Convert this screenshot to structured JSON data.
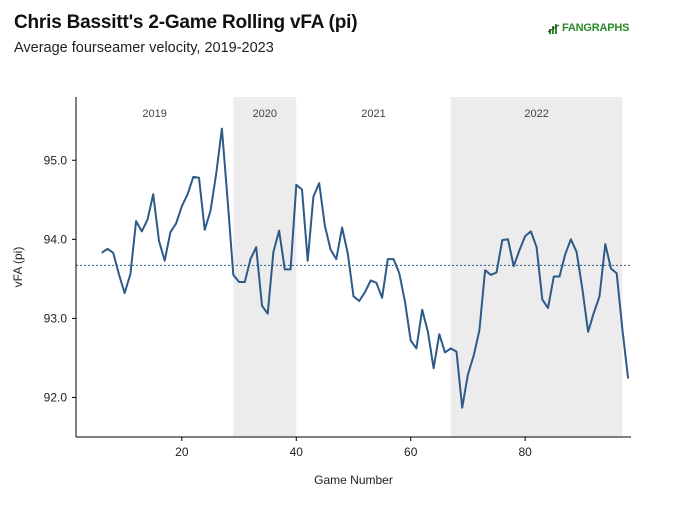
{
  "header": {
    "title": "Chris Bassitt's 2-Game Rolling vFA (pi)",
    "subtitle": "Average fourseamer velocity, 2019-2023",
    "logo_text": "FANGRAPHS"
  },
  "colors": {
    "line": "#2e5a88",
    "shade": "#ececec",
    "avg_line": "#2e5a88",
    "logo_green": "#2a8a2a"
  },
  "chart_data": {
    "type": "line",
    "title": "Chris Bassitt's 2-Game Rolling vFA (pi)",
    "subtitle": "Average fourseamer velocity, 2019-2023",
    "xlabel": "Game Number",
    "ylabel": "vFA (pi)",
    "xlim": [
      1.5,
      98.5
    ],
    "ylim": [
      91.5,
      95.8
    ],
    "x_ticks": [
      20,
      40,
      60,
      80
    ],
    "y_ticks": [
      92.0,
      93.0,
      94.0,
      95.0
    ],
    "y_tick_labels": [
      "92.0",
      "93.0",
      "94.0",
      "95.0"
    ],
    "average_line": 93.67,
    "grid": false,
    "season_bands": [
      {
        "label": "2019",
        "start": 1.5,
        "end": 29,
        "shaded": false
      },
      {
        "label": "2020",
        "start": 29,
        "end": 40,
        "shaded": true
      },
      {
        "label": "2021",
        "start": 40,
        "end": 67,
        "shaded": false
      },
      {
        "label": "2022",
        "start": 67,
        "end": 97,
        "shaded": true
      }
    ],
    "series": [
      {
        "x": [
          6,
          7,
          8,
          9,
          10,
          11,
          12,
          13,
          14,
          15,
          16,
          17,
          18,
          19,
          20,
          21,
          22,
          23,
          24,
          25,
          26,
          27,
          28,
          29,
          30,
          31,
          32,
          33,
          34,
          35,
          36,
          37,
          38,
          39,
          40,
          41,
          42,
          43,
          44,
          45,
          46,
          47,
          48,
          49,
          50,
          51,
          52,
          53,
          54,
          55,
          56,
          57,
          58,
          59,
          60,
          61,
          62,
          63,
          64,
          65,
          66,
          67,
          68,
          69,
          70,
          71,
          72,
          73,
          74,
          75,
          76,
          77,
          78,
          79,
          80,
          81,
          82,
          83,
          84,
          85,
          86,
          87,
          88,
          89,
          90,
          91,
          92,
          93,
          94,
          95,
          96,
          97,
          98
        ],
        "y": [
          93.83,
          93.88,
          93.83,
          93.56,
          93.32,
          93.56,
          94.23,
          94.1,
          94.25,
          94.57,
          93.98,
          93.73,
          94.09,
          94.2,
          94.42,
          94.57,
          94.79,
          94.78,
          94.12,
          94.36,
          94.83,
          95.4,
          94.5,
          93.55,
          93.46,
          93.46,
          93.75,
          93.9,
          93.16,
          93.06,
          93.84,
          94.11,
          93.62,
          93.62,
          94.69,
          94.63,
          93.73,
          94.54,
          94.71,
          94.17,
          93.87,
          93.75,
          94.15,
          93.82,
          93.28,
          93.22,
          93.33,
          93.48,
          93.45,
          93.26,
          93.75,
          93.75,
          93.57,
          93.21,
          92.72,
          92.62,
          93.11,
          92.83,
          92.37,
          92.8,
          92.57,
          92.62,
          92.58,
          91.87,
          92.29,
          92.53,
          92.85,
          93.61,
          93.55,
          93.58,
          93.99,
          94.0,
          93.66,
          93.86,
          94.04,
          94.1,
          93.9,
          93.24,
          93.13,
          93.53,
          93.53,
          93.81,
          94.0,
          93.84,
          93.37,
          92.83,
          93.07,
          93.28,
          93.94,
          93.63,
          93.57,
          92.86,
          92.24
        ]
      }
    ]
  }
}
